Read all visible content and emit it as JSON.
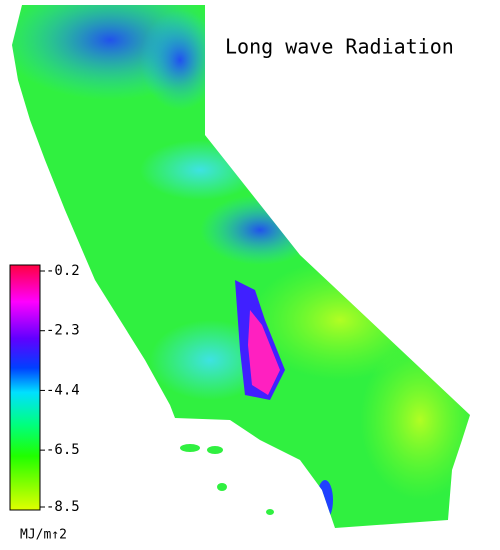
{
  "title": "Long wave Radiation",
  "colorbar": {
    "ticks": [
      -0.2,
      -2.3,
      -4.4,
      -6.5,
      -8.5
    ],
    "unit": "MJ/m↑2"
  }
}
